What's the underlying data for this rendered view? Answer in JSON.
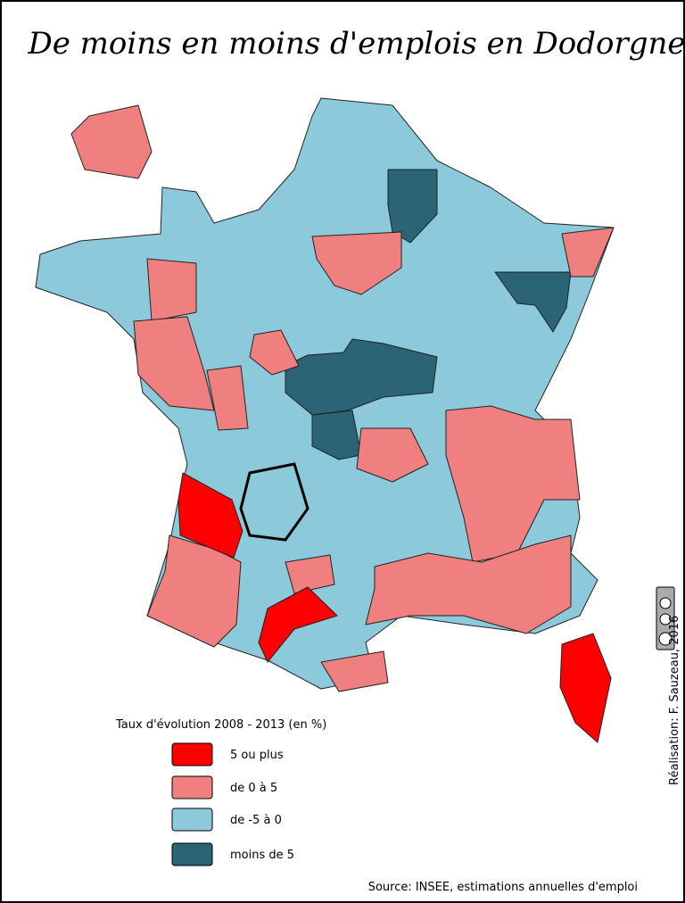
{
  "title": "De moins en moins d'emplois en Dodorgne",
  "legend": {
    "title": "Taux d'évolution 2008 - 2013 (en %)",
    "items": [
      {
        "label": "5 ou plus",
        "color": "#ff0000"
      },
      {
        "label": "de 0 à 5",
        "color": "#f08080"
      },
      {
        "label": "de -5 à 0",
        "color": "#8ccadb"
      },
      {
        "label": "moins de 5",
        "color": "#2a6475"
      }
    ]
  },
  "credit": "Réalisation: F. Sauzeau, 2016",
  "source": "Source: INSEE, estimations annuelles d'emploi"
}
